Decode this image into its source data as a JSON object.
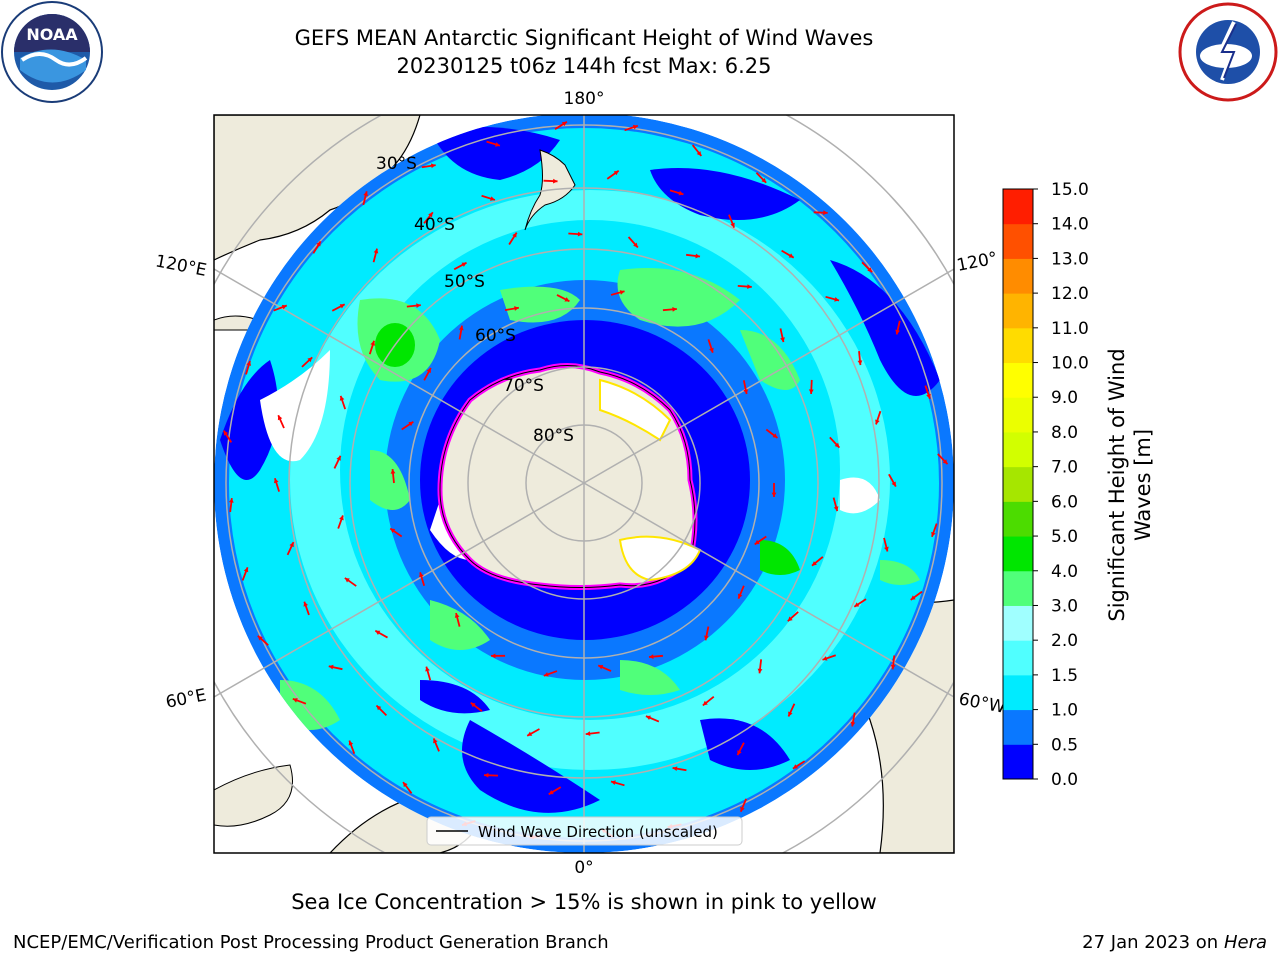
{
  "header": {
    "title_line1": "GEFS MEAN Antarctic Significant Height of Wind Waves",
    "title_line2": "20230125 t06z 144h fcst   Max: 6.25"
  },
  "logos": {
    "noaa": {
      "icon": "noaa-logo-icon",
      "text": "NOAA",
      "ring_text": "NATIONAL OCEANIC AND ATMOSPHERIC ADMINISTRATION · U.S. DEPARTMENT OF COMMERCE"
    },
    "nws": {
      "icon": "nws-logo-icon",
      "ring_text": "NATIONAL WEATHER SERVICE"
    }
  },
  "map": {
    "projection": "south-polar-stereographic",
    "lon_labels": {
      "top": "180°",
      "bottom": "0°",
      "left_upper": "120°E",
      "left_lower": "60°E",
      "right_upper": "120°",
      "right_lower": "60°W"
    },
    "lat_labels": [
      "30°S",
      "40°S",
      "50°S",
      "60°S",
      "70°S",
      "80°S"
    ],
    "legend_label": "Wind Wave Direction (unscaled)",
    "arrow_color": "#ff0000",
    "land_color": "#eeebdc",
    "ice_edge_colors": [
      "#ff00ff",
      "#ffe600"
    ]
  },
  "colorbar": {
    "label": "Significant Height of Wind Waves [m]",
    "label_line1": "Significant Height of Wind",
    "label_line2": "Waves [m]",
    "ticks": [
      "0.0",
      "0.5",
      "1.0",
      "1.5",
      "2.0",
      "3.0",
      "4.0",
      "5.0",
      "6.0",
      "7.0",
      "8.0",
      "9.0",
      "10.0",
      "11.0",
      "12.0",
      "13.0",
      "14.0",
      "15.0"
    ],
    "colors": [
      "#0000ff",
      "#0a78ff",
      "#00ebff",
      "#50ffff",
      "#a0ffff",
      "#50ff7a",
      "#00e600",
      "#4cdc00",
      "#a6e600",
      "#d2ff00",
      "#ebff00",
      "#ffff00",
      "#ffdc00",
      "#ffb400",
      "#ff8c00",
      "#ff5000",
      "#ff1e00"
    ]
  },
  "note": "Sea Ice Concentration > 15% is shown in pink to yellow",
  "footer": {
    "left": "NCEP/EMC/Verification Post Processing Product Generation Branch",
    "right_prefix": "27 Jan 2023 on ",
    "right_host": "Hera"
  }
}
